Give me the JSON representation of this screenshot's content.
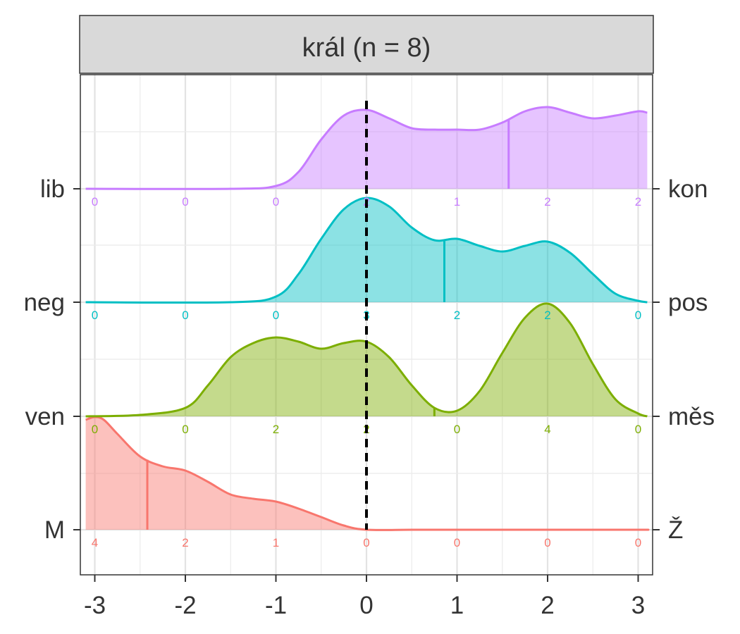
{
  "chart_data": {
    "type": "area",
    "title": "král (n = 8)",
    "xlim": [
      -3.1,
      3.1
    ],
    "x_ticks": [
      -3,
      -2,
      -1,
      0,
      1,
      2,
      3
    ],
    "x_tick_labels": [
      "-3",
      "-2",
      "-1",
      "0",
      "1",
      "2",
      "3"
    ],
    "reference_line_x": 0,
    "grid": true,
    "count_positions": [
      -3,
      -2,
      -1,
      0,
      1,
      2,
      3
    ],
    "series": [
      {
        "left_label": "M",
        "right_label": "Ž",
        "color": "#F8766D",
        "median": -2.42,
        "counts": [
          4,
          2,
          1,
          0,
          0,
          0,
          0
        ],
        "density_x": [
          -3.1,
          -3.0,
          -2.9,
          -2.75,
          -2.5,
          -2.25,
          -2.0,
          -1.75,
          -1.5,
          -1.25,
          -1.0,
          -0.75,
          -0.5,
          -0.25,
          0.0,
          0.5,
          1.0,
          2.0,
          3.0,
          3.1
        ],
        "density_y": [
          0.78,
          0.8,
          0.78,
          0.68,
          0.52,
          0.45,
          0.42,
          0.34,
          0.25,
          0.22,
          0.2,
          0.15,
          0.09,
          0.03,
          0.0,
          0.0,
          0.0,
          0.0,
          0.0,
          0.0
        ]
      },
      {
        "left_label": "ven",
        "right_label": "měs",
        "color": "#7CAE00",
        "median": 0.75,
        "counts": [
          0,
          0,
          2,
          2,
          0,
          4,
          0
        ],
        "density_x": [
          -3.1,
          -2.5,
          -2.0,
          -1.75,
          -1.5,
          -1.25,
          -1.0,
          -0.75,
          -0.5,
          -0.25,
          0.0,
          0.25,
          0.5,
          0.75,
          1.0,
          1.25,
          1.5,
          1.75,
          2.0,
          2.25,
          2.5,
          2.75,
          3.0,
          3.1
        ],
        "density_y": [
          0.0,
          0.01,
          0.06,
          0.22,
          0.42,
          0.52,
          0.56,
          0.53,
          0.48,
          0.52,
          0.53,
          0.42,
          0.22,
          0.06,
          0.04,
          0.18,
          0.45,
          0.7,
          0.8,
          0.66,
          0.37,
          0.12,
          0.02,
          0.0
        ]
      },
      {
        "left_label": "neg",
        "right_label": "pos",
        "color": "#00BFC4",
        "median": 0.86,
        "counts": [
          0,
          0,
          0,
          3,
          2,
          2,
          0
        ],
        "density_x": [
          -3.1,
          -1.5,
          -1.0,
          -0.75,
          -0.5,
          -0.25,
          0.0,
          0.25,
          0.5,
          0.75,
          1.0,
          1.25,
          1.5,
          1.75,
          2.0,
          2.25,
          2.5,
          2.75,
          3.0,
          3.1
        ],
        "density_y": [
          0.0,
          0.0,
          0.04,
          0.2,
          0.45,
          0.66,
          0.74,
          0.68,
          0.53,
          0.44,
          0.45,
          0.4,
          0.36,
          0.4,
          0.43,
          0.35,
          0.2,
          0.06,
          0.01,
          0.0
        ]
      },
      {
        "left_label": "lib",
        "right_label": "kon",
        "color": "#C77CFF",
        "median": 1.57,
        "counts": [
          0,
          0,
          0,
          2,
          1,
          2,
          2
        ],
        "density_x": [
          -3.1,
          -1.5,
          -1.0,
          -0.75,
          -0.5,
          -0.25,
          0.0,
          0.25,
          0.5,
          0.75,
          1.0,
          1.25,
          1.5,
          1.75,
          2.0,
          2.25,
          2.5,
          2.75,
          3.0,
          3.1
        ],
        "density_y": [
          0.0,
          0.0,
          0.02,
          0.12,
          0.35,
          0.52,
          0.56,
          0.5,
          0.43,
          0.42,
          0.42,
          0.42,
          0.47,
          0.55,
          0.58,
          0.54,
          0.5,
          0.52,
          0.55,
          0.54
        ]
      }
    ]
  }
}
